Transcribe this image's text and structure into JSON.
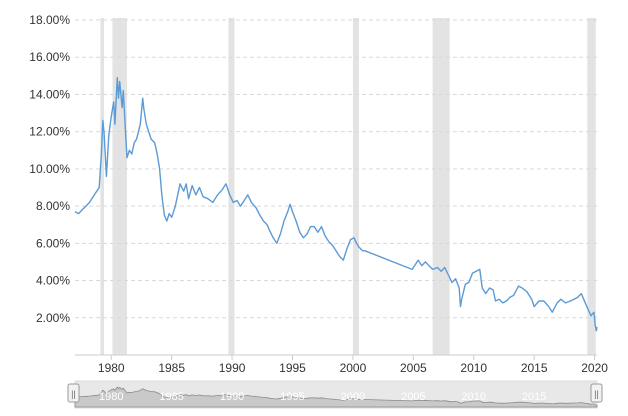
{
  "chart_data": {
    "type": "line",
    "title": "",
    "xlabel": "",
    "ylabel": "",
    "xlim": [
      1977.0,
      2020.2
    ],
    "ylim": [
      0,
      18
    ],
    "y_ticks": [
      {
        "value": 2,
        "label": "2.00%"
      },
      {
        "value": 4,
        "label": "4.00%"
      },
      {
        "value": 6,
        "label": "6.00%"
      },
      {
        "value": 8,
        "label": "8.00%"
      },
      {
        "value": 10,
        "label": "10.00%"
      },
      {
        "value": 12,
        "label": "12.00%"
      },
      {
        "value": 14,
        "label": "14.00%"
      },
      {
        "value": 16,
        "label": "16.00%"
      },
      {
        "value": 18,
        "label": "18.00%"
      }
    ],
    "x_ticks": [
      {
        "value": 1980,
        "label": "1980"
      },
      {
        "value": 1985,
        "label": "1985"
      },
      {
        "value": 1990,
        "label": "1990"
      },
      {
        "value": 1995,
        "label": "1995"
      },
      {
        "value": 2000,
        "label": "2000"
      },
      {
        "value": 2005,
        "label": "2005"
      },
      {
        "value": 2010,
        "label": "2010"
      },
      {
        "value": 2015,
        "label": "2015"
      },
      {
        "value": 2020,
        "label": "2020"
      }
    ],
    "grid": "horizontal dashed",
    "line_color": "#5b9bd5",
    "recession_color": "#e3e3e3",
    "recessions": [
      [
        1979.1,
        1979.4
      ],
      [
        1980.1,
        1981.3
      ],
      [
        1989.7,
        1990.2
      ],
      [
        2000.0,
        2000.5
      ],
      [
        2006.6,
        2008.0
      ],
      [
        2019.4,
        2020.1
      ]
    ],
    "series": [
      {
        "values": [
          [
            1977.0,
            7.7
          ],
          [
            1977.3,
            7.6
          ],
          [
            1977.6,
            7.8
          ],
          [
            1977.9,
            8.0
          ],
          [
            1978.2,
            8.2
          ],
          [
            1978.5,
            8.5
          ],
          [
            1978.8,
            8.8
          ],
          [
            1979.0,
            9.0
          ],
          [
            1979.2,
            11.0
          ],
          [
            1979.3,
            12.6
          ],
          [
            1979.4,
            12.0
          ],
          [
            1979.6,
            9.6
          ],
          [
            1979.8,
            11.8
          ],
          [
            1980.0,
            12.8
          ],
          [
            1980.2,
            13.6
          ],
          [
            1980.3,
            12.4
          ],
          [
            1980.5,
            14.9
          ],
          [
            1980.6,
            13.8
          ],
          [
            1980.7,
            14.7
          ],
          [
            1980.9,
            13.3
          ],
          [
            1981.0,
            14.2
          ],
          [
            1981.2,
            11.7
          ],
          [
            1981.3,
            10.6
          ],
          [
            1981.5,
            11.0
          ],
          [
            1981.7,
            10.8
          ],
          [
            1981.9,
            11.4
          ],
          [
            1982.1,
            11.6
          ],
          [
            1982.4,
            12.4
          ],
          [
            1982.6,
            13.8
          ],
          [
            1982.7,
            13.2
          ],
          [
            1982.9,
            12.4
          ],
          [
            1983.1,
            12.0
          ],
          [
            1983.3,
            11.6
          ],
          [
            1983.6,
            11.4
          ],
          [
            1983.8,
            10.8
          ],
          [
            1984.0,
            10.0
          ],
          [
            1984.2,
            8.5
          ],
          [
            1984.4,
            7.5
          ],
          [
            1984.6,
            7.2
          ],
          [
            1984.8,
            7.6
          ],
          [
            1985.0,
            7.4
          ],
          [
            1985.3,
            8.0
          ],
          [
            1985.5,
            8.6
          ],
          [
            1985.7,
            9.2
          ],
          [
            1986.0,
            8.8
          ],
          [
            1986.2,
            9.2
          ],
          [
            1986.4,
            8.4
          ],
          [
            1986.7,
            9.1
          ],
          [
            1987.0,
            8.6
          ],
          [
            1987.3,
            9.0
          ],
          [
            1987.6,
            8.5
          ],
          [
            1988.0,
            8.4
          ],
          [
            1988.4,
            8.2
          ],
          [
            1988.8,
            8.6
          ],
          [
            1989.2,
            8.9
          ],
          [
            1989.5,
            9.2
          ],
          [
            1989.8,
            8.6
          ],
          [
            1990.1,
            8.2
          ],
          [
            1990.4,
            8.3
          ],
          [
            1990.7,
            8.0
          ],
          [
            1991.0,
            8.3
          ],
          [
            1991.3,
            8.6
          ],
          [
            1991.6,
            8.2
          ],
          [
            1992.0,
            7.9
          ],
          [
            1992.3,
            7.5
          ],
          [
            1992.6,
            7.2
          ],
          [
            1992.9,
            7.0
          ],
          [
            1993.1,
            6.7
          ],
          [
            1993.4,
            6.3
          ],
          [
            1993.7,
            6.0
          ],
          [
            1994.0,
            6.5
          ],
          [
            1994.3,
            7.2
          ],
          [
            1994.6,
            7.7
          ],
          [
            1994.8,
            8.1
          ],
          [
            1995.0,
            7.7
          ],
          [
            1995.3,
            7.2
          ],
          [
            1995.6,
            6.6
          ],
          [
            1995.9,
            6.3
          ],
          [
            1996.2,
            6.5
          ],
          [
            1996.5,
            6.9
          ],
          [
            1996.8,
            6.9
          ],
          [
            1997.1,
            6.6
          ],
          [
            1997.4,
            6.9
          ],
          [
            1997.7,
            6.4
          ],
          [
            1998.0,
            6.1
          ],
          [
            1998.3,
            5.9
          ],
          [
            1998.6,
            5.6
          ],
          [
            1998.9,
            5.3
          ],
          [
            1999.2,
            5.1
          ],
          [
            1999.5,
            5.7
          ],
          [
            1999.8,
            6.2
          ],
          [
            2000.1,
            6.3
          ],
          [
            2000.3,
            6.0
          ],
          [
            2000.5,
            5.8
          ],
          [
            2000.8,
            5.6
          ],
          [
            2001.0,
            5.6
          ],
          [
            2004.9,
            4.6
          ],
          [
            2005.1,
            4.8
          ],
          [
            2005.4,
            5.1
          ],
          [
            2005.7,
            4.8
          ],
          [
            2006.0,
            5.0
          ],
          [
            2006.3,
            4.8
          ],
          [
            2006.6,
            4.6
          ],
          [
            2007.0,
            4.7
          ],
          [
            2007.3,
            4.5
          ],
          [
            2007.6,
            4.7
          ],
          [
            2007.9,
            4.3
          ],
          [
            2008.2,
            3.9
          ],
          [
            2008.5,
            4.1
          ],
          [
            2008.8,
            3.6
          ],
          [
            2008.9,
            2.6
          ],
          [
            2009.0,
            3.0
          ],
          [
            2009.3,
            3.8
          ],
          [
            2009.6,
            3.9
          ],
          [
            2009.9,
            4.4
          ],
          [
            2010.2,
            4.5
          ],
          [
            2010.5,
            4.6
          ],
          [
            2010.7,
            3.6
          ],
          [
            2011.0,
            3.3
          ],
          [
            2011.3,
            3.6
          ],
          [
            2011.6,
            3.5
          ],
          [
            2011.8,
            2.9
          ],
          [
            2012.1,
            3.0
          ],
          [
            2012.4,
            2.8
          ],
          [
            2012.7,
            2.9
          ],
          [
            2013.0,
            3.1
          ],
          [
            2013.3,
            3.2
          ],
          [
            2013.7,
            3.7
          ],
          [
            2014.0,
            3.6
          ],
          [
            2014.4,
            3.4
          ],
          [
            2014.8,
            3.0
          ],
          [
            2015.0,
            2.6
          ],
          [
            2015.4,
            2.9
          ],
          [
            2015.8,
            2.9
          ],
          [
            2016.2,
            2.6
          ],
          [
            2016.5,
            2.3
          ],
          [
            2016.9,
            2.8
          ],
          [
            2017.2,
            3.0
          ],
          [
            2017.6,
            2.8
          ],
          [
            2018.0,
            2.9
          ],
          [
            2018.3,
            3.0
          ],
          [
            2018.6,
            3.1
          ],
          [
            2018.9,
            3.3
          ],
          [
            2019.1,
            3.0
          ],
          [
            2019.3,
            2.7
          ],
          [
            2019.5,
            2.4
          ],
          [
            2019.7,
            2.1
          ],
          [
            2019.8,
            2.2
          ],
          [
            2019.95,
            2.3
          ],
          [
            2020.05,
            1.6
          ],
          [
            2020.15,
            1.3
          ],
          [
            2020.2,
            1.5
          ]
        ]
      }
    ],
    "navigator": {
      "x_ticks": [
        {
          "value": 1980,
          "label": "1980"
        },
        {
          "value": 1985,
          "label": "1985"
        },
        {
          "value": 1990,
          "label": "1990"
        },
        {
          "value": 1995,
          "label": "1995"
        },
        {
          "value": 2000,
          "label": "2000"
        },
        {
          "value": 2005,
          "label": "2005"
        },
        {
          "value": 2010,
          "label": "2010"
        },
        {
          "value": 2015,
          "label": "2015"
        }
      ],
      "handle_glyph": "||",
      "fill_color": "#c9c9c9",
      "line_color": "#8a8a8a"
    }
  }
}
